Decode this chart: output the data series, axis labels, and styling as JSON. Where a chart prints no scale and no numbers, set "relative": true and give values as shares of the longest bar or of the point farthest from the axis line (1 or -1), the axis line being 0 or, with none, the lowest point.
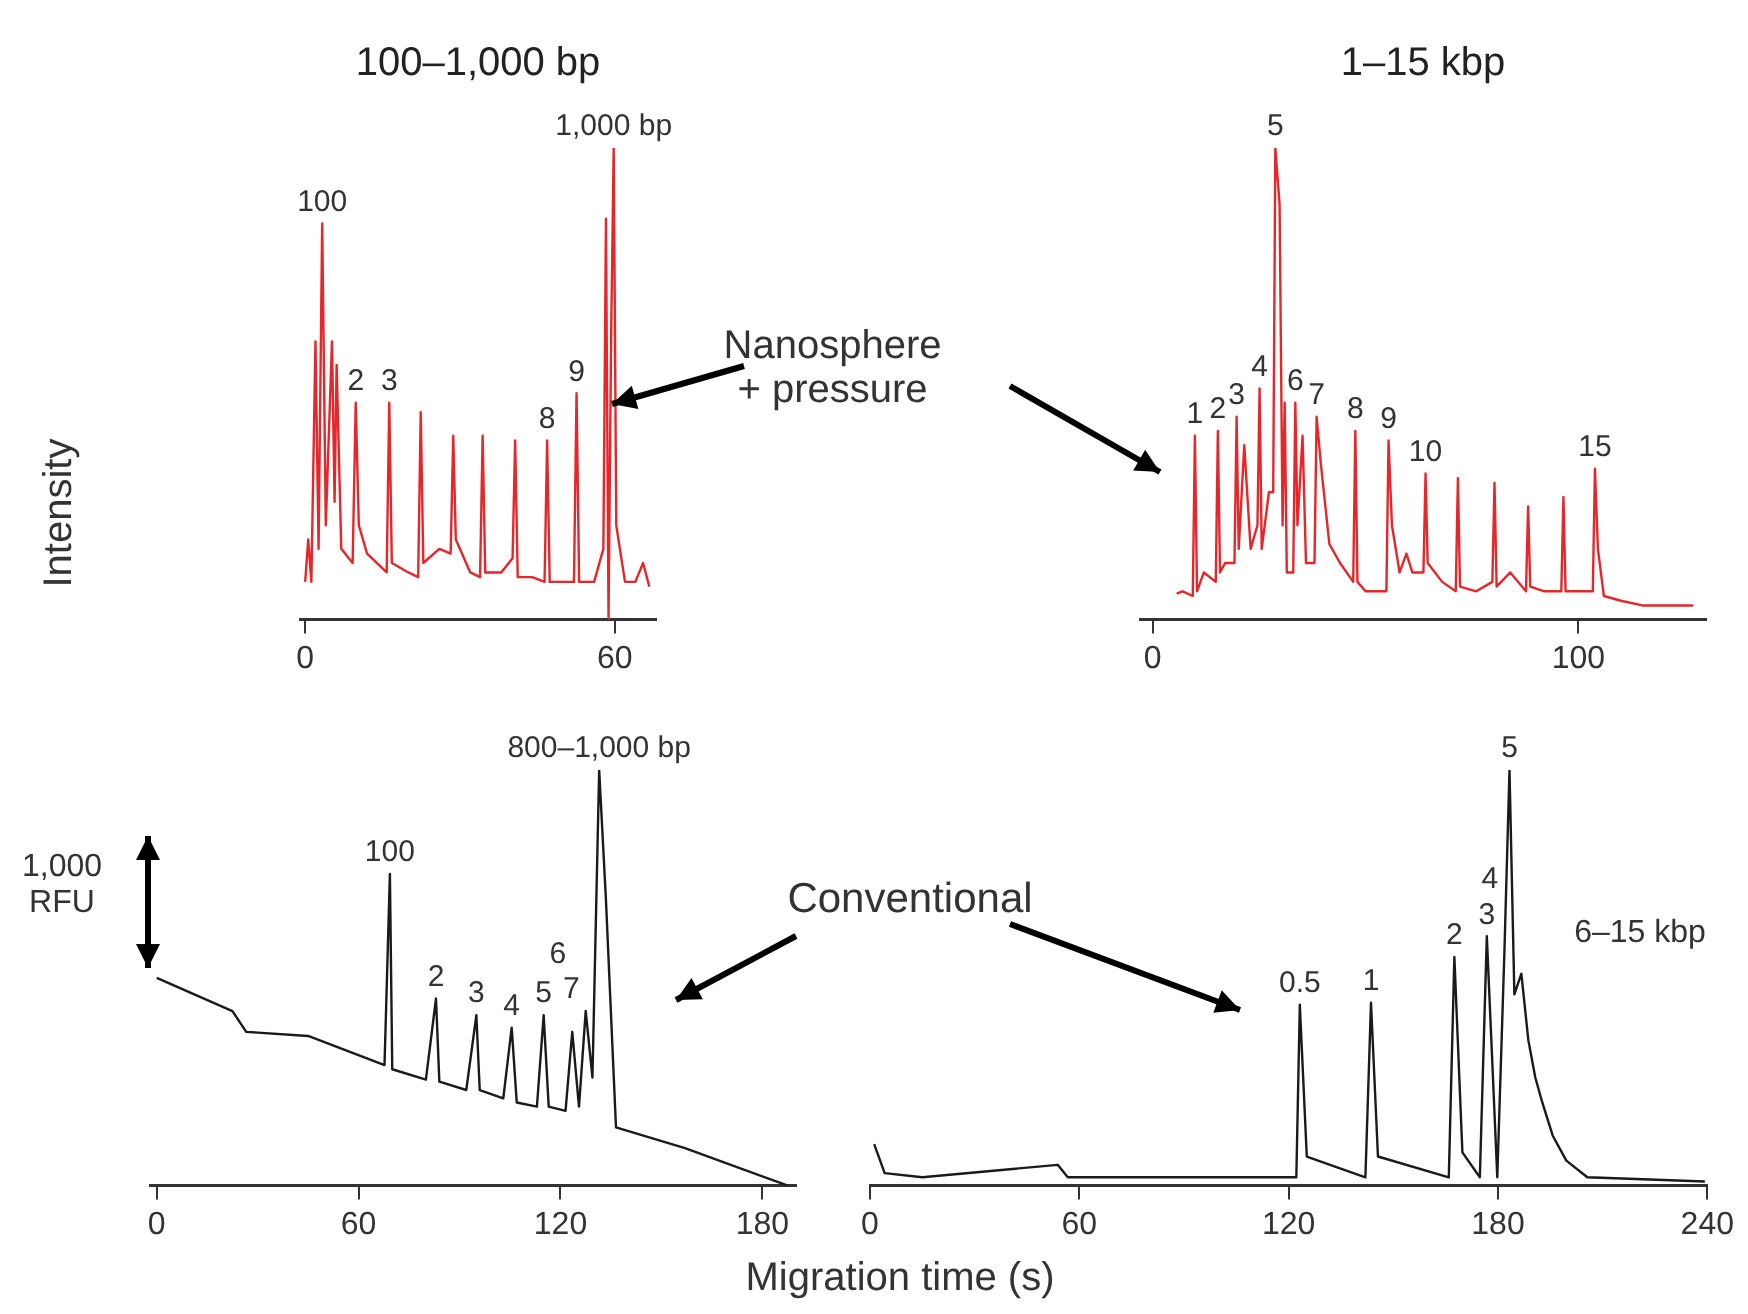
{
  "chart_data": [
    {
      "type": "line",
      "title": "100–1,000 bp",
      "ylabel": "Intensity",
      "relative": true,
      "marker": "none",
      "xlim": [
        -1,
        68
      ],
      "xticks": [
        0,
        60
      ],
      "series": [
        {
          "color": "#e8262a",
          "x": [
            0,
            0.6,
            1.2,
            2,
            2.6,
            3.3,
            4,
            5.2,
            5.7,
            6.1,
            7,
            9.2,
            9.8,
            10.4,
            12,
            15.8,
            16.3,
            16.8,
            20,
            21.9,
            22.4,
            22.9,
            26,
            28.2,
            28.7,
            29.2,
            32,
            33.9,
            34.4,
            34.9,
            38,
            40.2,
            40.7,
            41.2,
            44,
            46.4,
            46.9,
            47.4,
            50,
            52.1,
            52.6,
            53.1,
            56,
            57.8,
            58.3,
            58.8,
            59.3,
            59.8,
            60.3,
            61,
            62,
            64,
            65.5,
            66.7
          ],
          "values": [
            0.08,
            0.17,
            0.08,
            0.59,
            0.15,
            0.84,
            0.2,
            0.59,
            0.25,
            0.54,
            0.15,
            0.12,
            0.46,
            0.2,
            0.14,
            0.1,
            0.46,
            0.12,
            0.1,
            0.09,
            0.44,
            0.12,
            0.15,
            0.14,
            0.39,
            0.17,
            0.1,
            0.09,
            0.39,
            0.1,
            0.1,
            0.13,
            0.38,
            0.09,
            0.09,
            0.08,
            0.38,
            0.08,
            0.08,
            0.08,
            0.48,
            0.08,
            0.08,
            0.15,
            0.85,
            0,
            0.6,
            1,
            0.2,
            0.15,
            0.08,
            0.08,
            0.12,
            0.07
          ]
        }
      ],
      "annotations": [
        "Nanosphere + pressure",
        {
          "text": "100",
          "x": 3.3,
          "y": 0.84
        },
        {
          "text": "2",
          "x": 9.8,
          "y": 0.46
        },
        {
          "text": "3",
          "x": 16.3,
          "y": 0.46
        },
        {
          "text": "8",
          "x": 46.9,
          "y": 0.38
        },
        {
          "text": "9",
          "x": 52.6,
          "y": 0.48
        },
        {
          "text": "1,000 bp",
          "x": 59.8,
          "y": 1
        }
      ]
    },
    {
      "type": "line",
      "title": "1–15 kbp",
      "relative": true,
      "marker": "none",
      "xlim": [
        -3,
        130
      ],
      "xticks": [
        0,
        100
      ],
      "series": [
        {
          "color": "#e8262a",
          "x": [
            5.6,
            7,
            9.4,
            9.9,
            10.4,
            12,
            14.8,
            15.3,
            15.8,
            17,
            19.2,
            19.7,
            20.2,
            21.5,
            23,
            24.6,
            25.1,
            25.6,
            27.3,
            28.3,
            28.8,
            29.8,
            30.5,
            31,
            31.5,
            33,
            33.5,
            34,
            35.2,
            36,
            38,
            38.5,
            39.5,
            41.5,
            44,
            47.1,
            47.6,
            48.1,
            50,
            54.9,
            55.4,
            56.2,
            58,
            59.6,
            61,
            63.6,
            64.1,
            64.6,
            68,
            71.2,
            71.7,
            72.2,
            76,
            79.8,
            80.3,
            80.8,
            84,
            87.7,
            88.2,
            88.7,
            92,
            96,
            96.5,
            97,
            101,
            103.4,
            103.9,
            104.6,
            106,
            110,
            115,
            120,
            127
          ],
          "values": [
            0.055,
            0.06,
            0.05,
            0.39,
            0.06,
            0.1,
            0.08,
            0.4,
            0.1,
            0.12,
            0.12,
            0.43,
            0.15,
            0.37,
            0.15,
            0.2,
            0.49,
            0.15,
            0.27,
            0.27,
            1,
            0.88,
            0.2,
            0.46,
            0.1,
            0.1,
            0.46,
            0.2,
            0.39,
            0.12,
            0.12,
            0.43,
            0.33,
            0.16,
            0.12,
            0.08,
            0.4,
            0.08,
            0.06,
            0.06,
            0.38,
            0.2,
            0.1,
            0.14,
            0.1,
            0.1,
            0.31,
            0.12,
            0.08,
            0.06,
            0.3,
            0.07,
            0.06,
            0.08,
            0.29,
            0.07,
            0.1,
            0.06,
            0.24,
            0.07,
            0.06,
            0.06,
            0.26,
            0.06,
            0.06,
            0.06,
            0.32,
            0.15,
            0.05,
            0.04,
            0.03,
            0.03,
            0.03
          ]
        }
      ],
      "annotations": [
        {
          "text": "1",
          "x": 9.9,
          "y": 0.39
        },
        {
          "text": "2",
          "x": 15.3,
          "y": 0.4
        },
        {
          "text": "3",
          "x": 19.7,
          "y": 0.43
        },
        {
          "text": "4",
          "x": 25.1,
          "y": 0.49
        },
        {
          "text": "5",
          "x": 28.8,
          "y": 1
        },
        {
          "text": "6",
          "x": 33.5,
          "y": 0.46
        },
        {
          "text": "7",
          "x": 38.5,
          "y": 0.43
        },
        {
          "text": "8",
          "x": 47.6,
          "y": 0.4
        },
        {
          "text": "9",
          "x": 55.4,
          "y": 0.38
        },
        {
          "text": "10",
          "x": 64.1,
          "y": 0.31
        },
        {
          "text": "15",
          "x": 103.9,
          "y": 0.32
        }
      ]
    },
    {
      "type": "line",
      "xlabel": "Migration time (s)",
      "relative": true,
      "marker": "none",
      "xlim": [
        -2,
        190
      ],
      "xticks": [
        0,
        60,
        120,
        180
      ],
      "series": [
        {
          "color": "#1a1a1a",
          "x": [
            0,
            22.5,
            26.6,
            45,
            67.7,
            69.3,
            70,
            80,
            83,
            84,
            92,
            95,
            96,
            103,
            105.5,
            107,
            113,
            115,
            116.5,
            121.5,
            123.5,
            125.5,
            127.5,
            129.5,
            131.5,
            133.5,
            136.5,
            157,
            187.6
          ],
          "values": [
            0.5,
            0.42,
            0.37,
            0.36,
            0.29,
            0.75,
            0.28,
            0.255,
            0.45,
            0.25,
            0.23,
            0.41,
            0.23,
            0.21,
            0.38,
            0.2,
            0.19,
            0.41,
            0.19,
            0.18,
            0.37,
            0.19,
            0.42,
            0.26,
            1,
            0.69,
            0.14,
            0.09,
            0
          ]
        }
      ],
      "annotations": [
        "Conventional",
        "1,000 RFU",
        {
          "text": "100",
          "x": 69.3,
          "y": 0.75
        },
        {
          "text": "2",
          "x": 83,
          "y": 0.45
        },
        {
          "text": "3",
          "x": 95,
          "y": 0.41
        },
        {
          "text": "4",
          "x": 105.5,
          "y": 0.38
        },
        {
          "text": "5",
          "x": 115,
          "y": 0.41
        },
        {
          "text": "6",
          "x": 123.5,
          "y": 0.37
        },
        {
          "text": "7",
          "x": 127.5,
          "y": 0.42
        },
        {
          "text": "800–1,000 bp",
          "x": 131.5,
          "y": 1
        }
      ]
    },
    {
      "type": "line",
      "relative": true,
      "marker": "none",
      "xlim": [
        0,
        240
      ],
      "xticks": [
        0,
        60,
        120,
        180,
        240
      ],
      "series": [
        {
          "color": "#1a1a1a",
          "x": [
            1.2,
            4.2,
            15,
            53.8,
            56.7,
            122.2,
            123.2,
            125.2,
            142,
            143.6,
            145.6,
            165.9,
            167.5,
            169.8,
            174.8,
            176.8,
            178.2,
            179.8,
            181.8,
            183.3,
            184.7,
            186.7,
            188.7,
            190.7,
            192.7,
            195.7,
            199.6,
            205.6,
            239.3
          ],
          "values": [
            0.1,
            0.03,
            0.02,
            0.05,
            0.02,
            0.02,
            0.435,
            0.07,
            0.02,
            0.44,
            0.07,
            0.02,
            0.55,
            0.08,
            0.02,
            0.6,
            0.33,
            0.02,
            0.55,
            1,
            0.46,
            0.51,
            0.35,
            0.26,
            0.2,
            0.12,
            0.06,
            0.02,
            0.01
          ]
        }
      ],
      "annotations": [
        "6–15 kbp",
        {
          "text": "0.5",
          "x": 123.2,
          "y": 0.435
        },
        {
          "text": "1",
          "x": 143.6,
          "y": 0.44
        },
        {
          "text": "2",
          "x": 167.5,
          "y": 0.55
        },
        {
          "text": "3",
          "x": 176.8,
          "y": 0.6
        },
        {
          "text": "4",
          "x": 181.8,
          "y": 0.55
        },
        {
          "text": "5",
          "x": 183.3,
          "y": 1
        }
      ]
    }
  ]
}
